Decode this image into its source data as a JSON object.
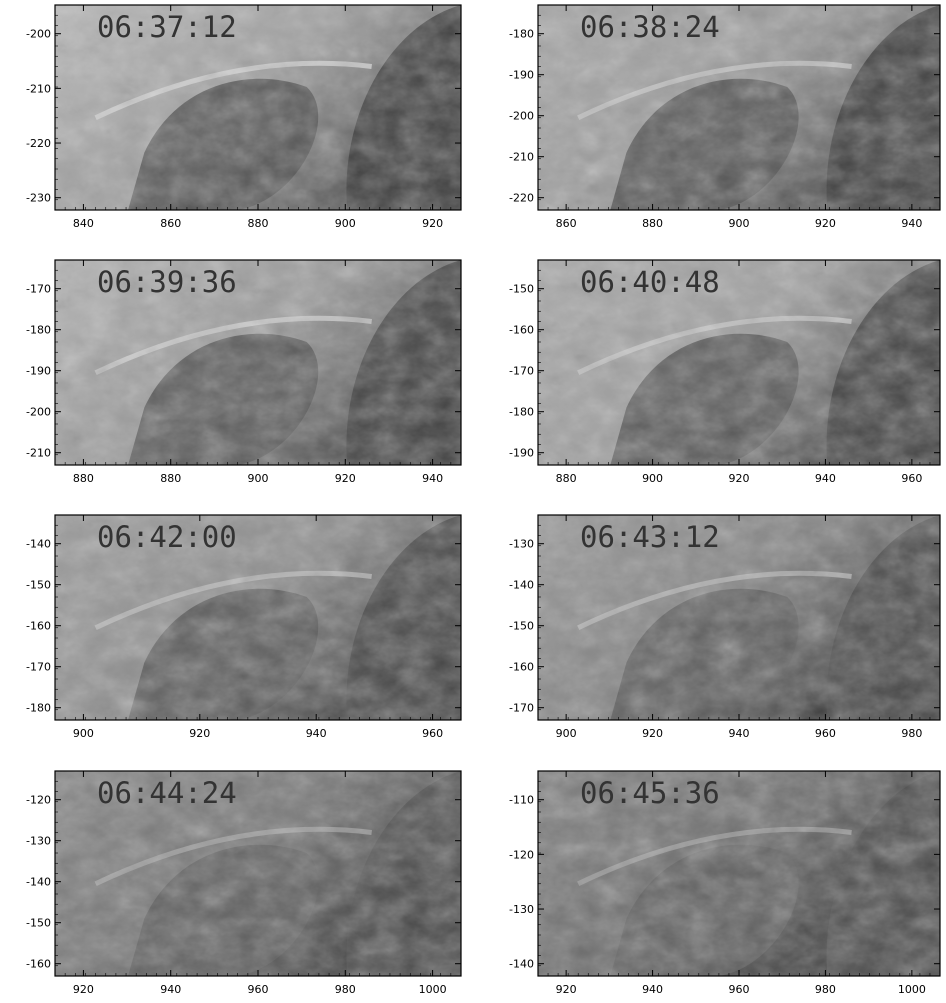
{
  "figure": {
    "panels": [
      {
        "time": "06:37:12",
        "xticks": [
          "840",
          "860",
          "880",
          "900",
          "920"
        ],
        "yticks": [
          "-200",
          "-210",
          "-220",
          "-230"
        ],
        "brightness": 0.62,
        "limb": 0.72
      },
      {
        "time": "06:38:24",
        "xticks": [
          "860",
          "880",
          "900",
          "920",
          "940"
        ],
        "yticks": [
          "-180",
          "-190",
          "-200",
          "-210",
          "-220"
        ],
        "brightness": 0.6,
        "limb": 0.66
      },
      {
        "time": "06:39:36",
        "xticks": [
          "880",
          "880",
          "900",
          "920",
          "940"
        ],
        "yticks": [
          "-170",
          "-180",
          "-190",
          "-200",
          "-210"
        ],
        "brightness": 0.6,
        "limb": 0.7
      },
      {
        "time": "06:40:48",
        "xticks": [
          "880",
          "900",
          "920",
          "940",
          "960"
        ],
        "yticks": [
          "-150",
          "-160",
          "-170",
          "-180",
          "-190"
        ],
        "brightness": 0.62,
        "limb": 0.66
      },
      {
        "time": "06:42:00",
        "xticks": [
          "900",
          "920",
          "940",
          "960"
        ],
        "yticks": [
          "-140",
          "-150",
          "-160",
          "-170",
          "-180"
        ],
        "brightness": 0.55,
        "limb": 0.62
      },
      {
        "time": "06:43:12",
        "xticks": [
          "900",
          "920",
          "940",
          "960",
          "980"
        ],
        "yticks": [
          "-130",
          "-140",
          "-150",
          "-160",
          "-170"
        ],
        "brightness": 0.5,
        "limb": 0.6
      },
      {
        "time": "06:44:24",
        "xticks": [
          "920",
          "940",
          "960",
          "980",
          "1000"
        ],
        "yticks": [
          "-120",
          "-130",
          "-140",
          "-150",
          "-160"
        ],
        "brightness": 0.45,
        "limb": 0.52
      },
      {
        "time": "06:45:36",
        "xticks": [
          "920",
          "940",
          "960",
          "980",
          "1000"
        ],
        "yticks": [
          "-110",
          "-120",
          "-130",
          "-140"
        ],
        "brightness": 0.42,
        "limb": 0.5
      }
    ]
  }
}
